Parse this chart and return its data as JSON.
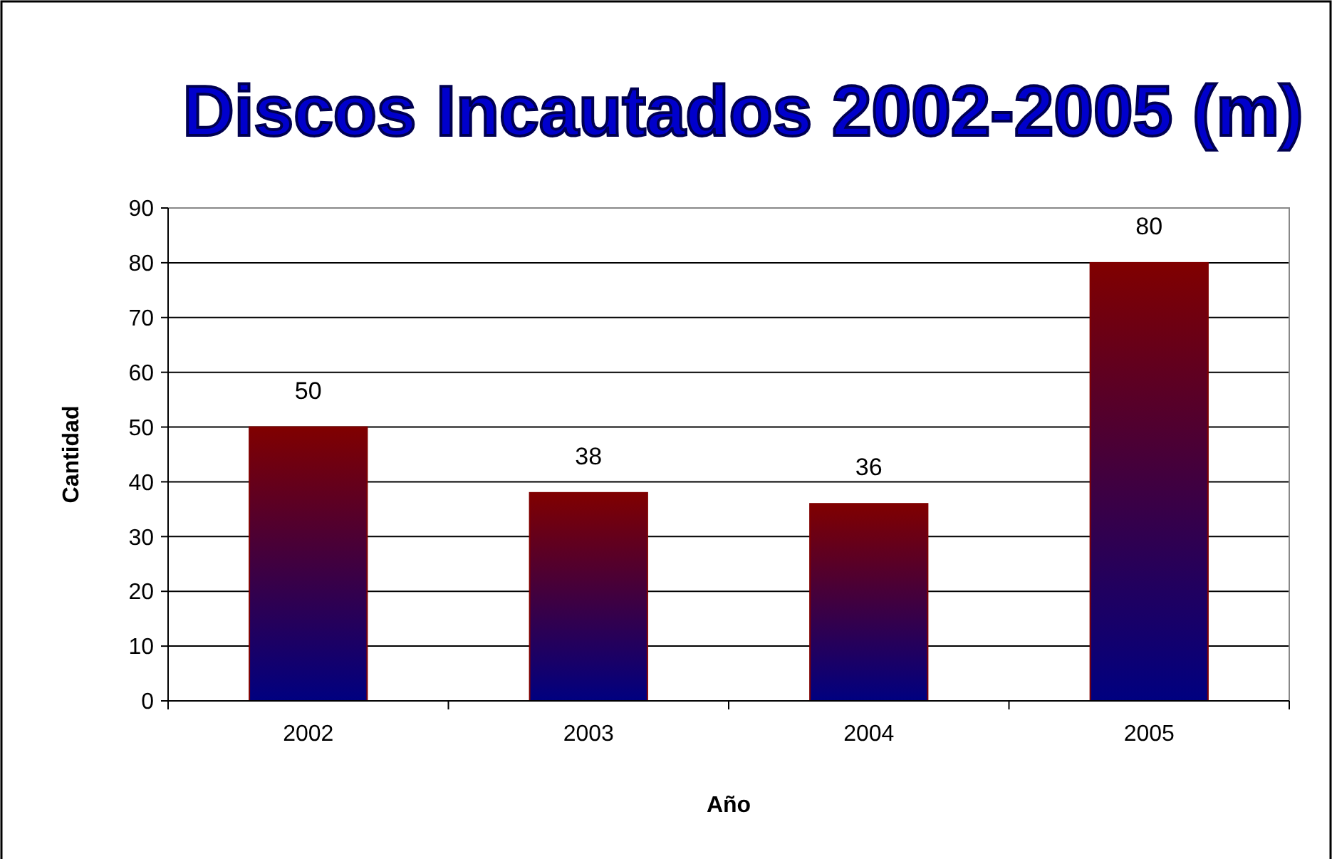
{
  "chart_data": {
    "type": "bar",
    "title": "Discos Incautados 2002-2005 (m)",
    "xlabel": "Año",
    "ylabel": "Cantidad",
    "categories": [
      "2002",
      "2003",
      "2004",
      "2005"
    ],
    "values": [
      50,
      38,
      36,
      80
    ],
    "color": "#800000",
    "ylim": [
      0,
      90
    ],
    "yticks": [
      0,
      10,
      20,
      30,
      40,
      50,
      60,
      70,
      80,
      90
    ],
    "grid": "y",
    "data_labels": true
  }
}
